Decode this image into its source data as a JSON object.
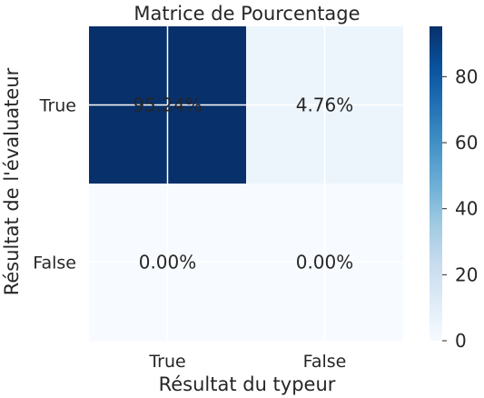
{
  "chart_data": {
    "type": "heatmap",
    "title": "Matrice de Pourcentage",
    "xlabel": "Résultat du typeur",
    "ylabel": "Résultat de l'évaluateur",
    "x_categories": [
      "True",
      "False"
    ],
    "y_categories": [
      "True",
      "False"
    ],
    "values": [
      [
        95.24,
        4.76
      ],
      [
        0.0,
        0.0
      ]
    ],
    "cell_labels": [
      [
        "95.24%",
        "4.76%"
      ],
      [
        "0.00%",
        "0.00%"
      ]
    ],
    "colorbar": {
      "range": [
        0,
        95.24
      ],
      "ticks": [
        0,
        20,
        40,
        60,
        80
      ],
      "tick_labels": [
        "0",
        "20",
        "40",
        "60",
        "80"
      ],
      "colormap": "Blues"
    },
    "grid": true
  }
}
